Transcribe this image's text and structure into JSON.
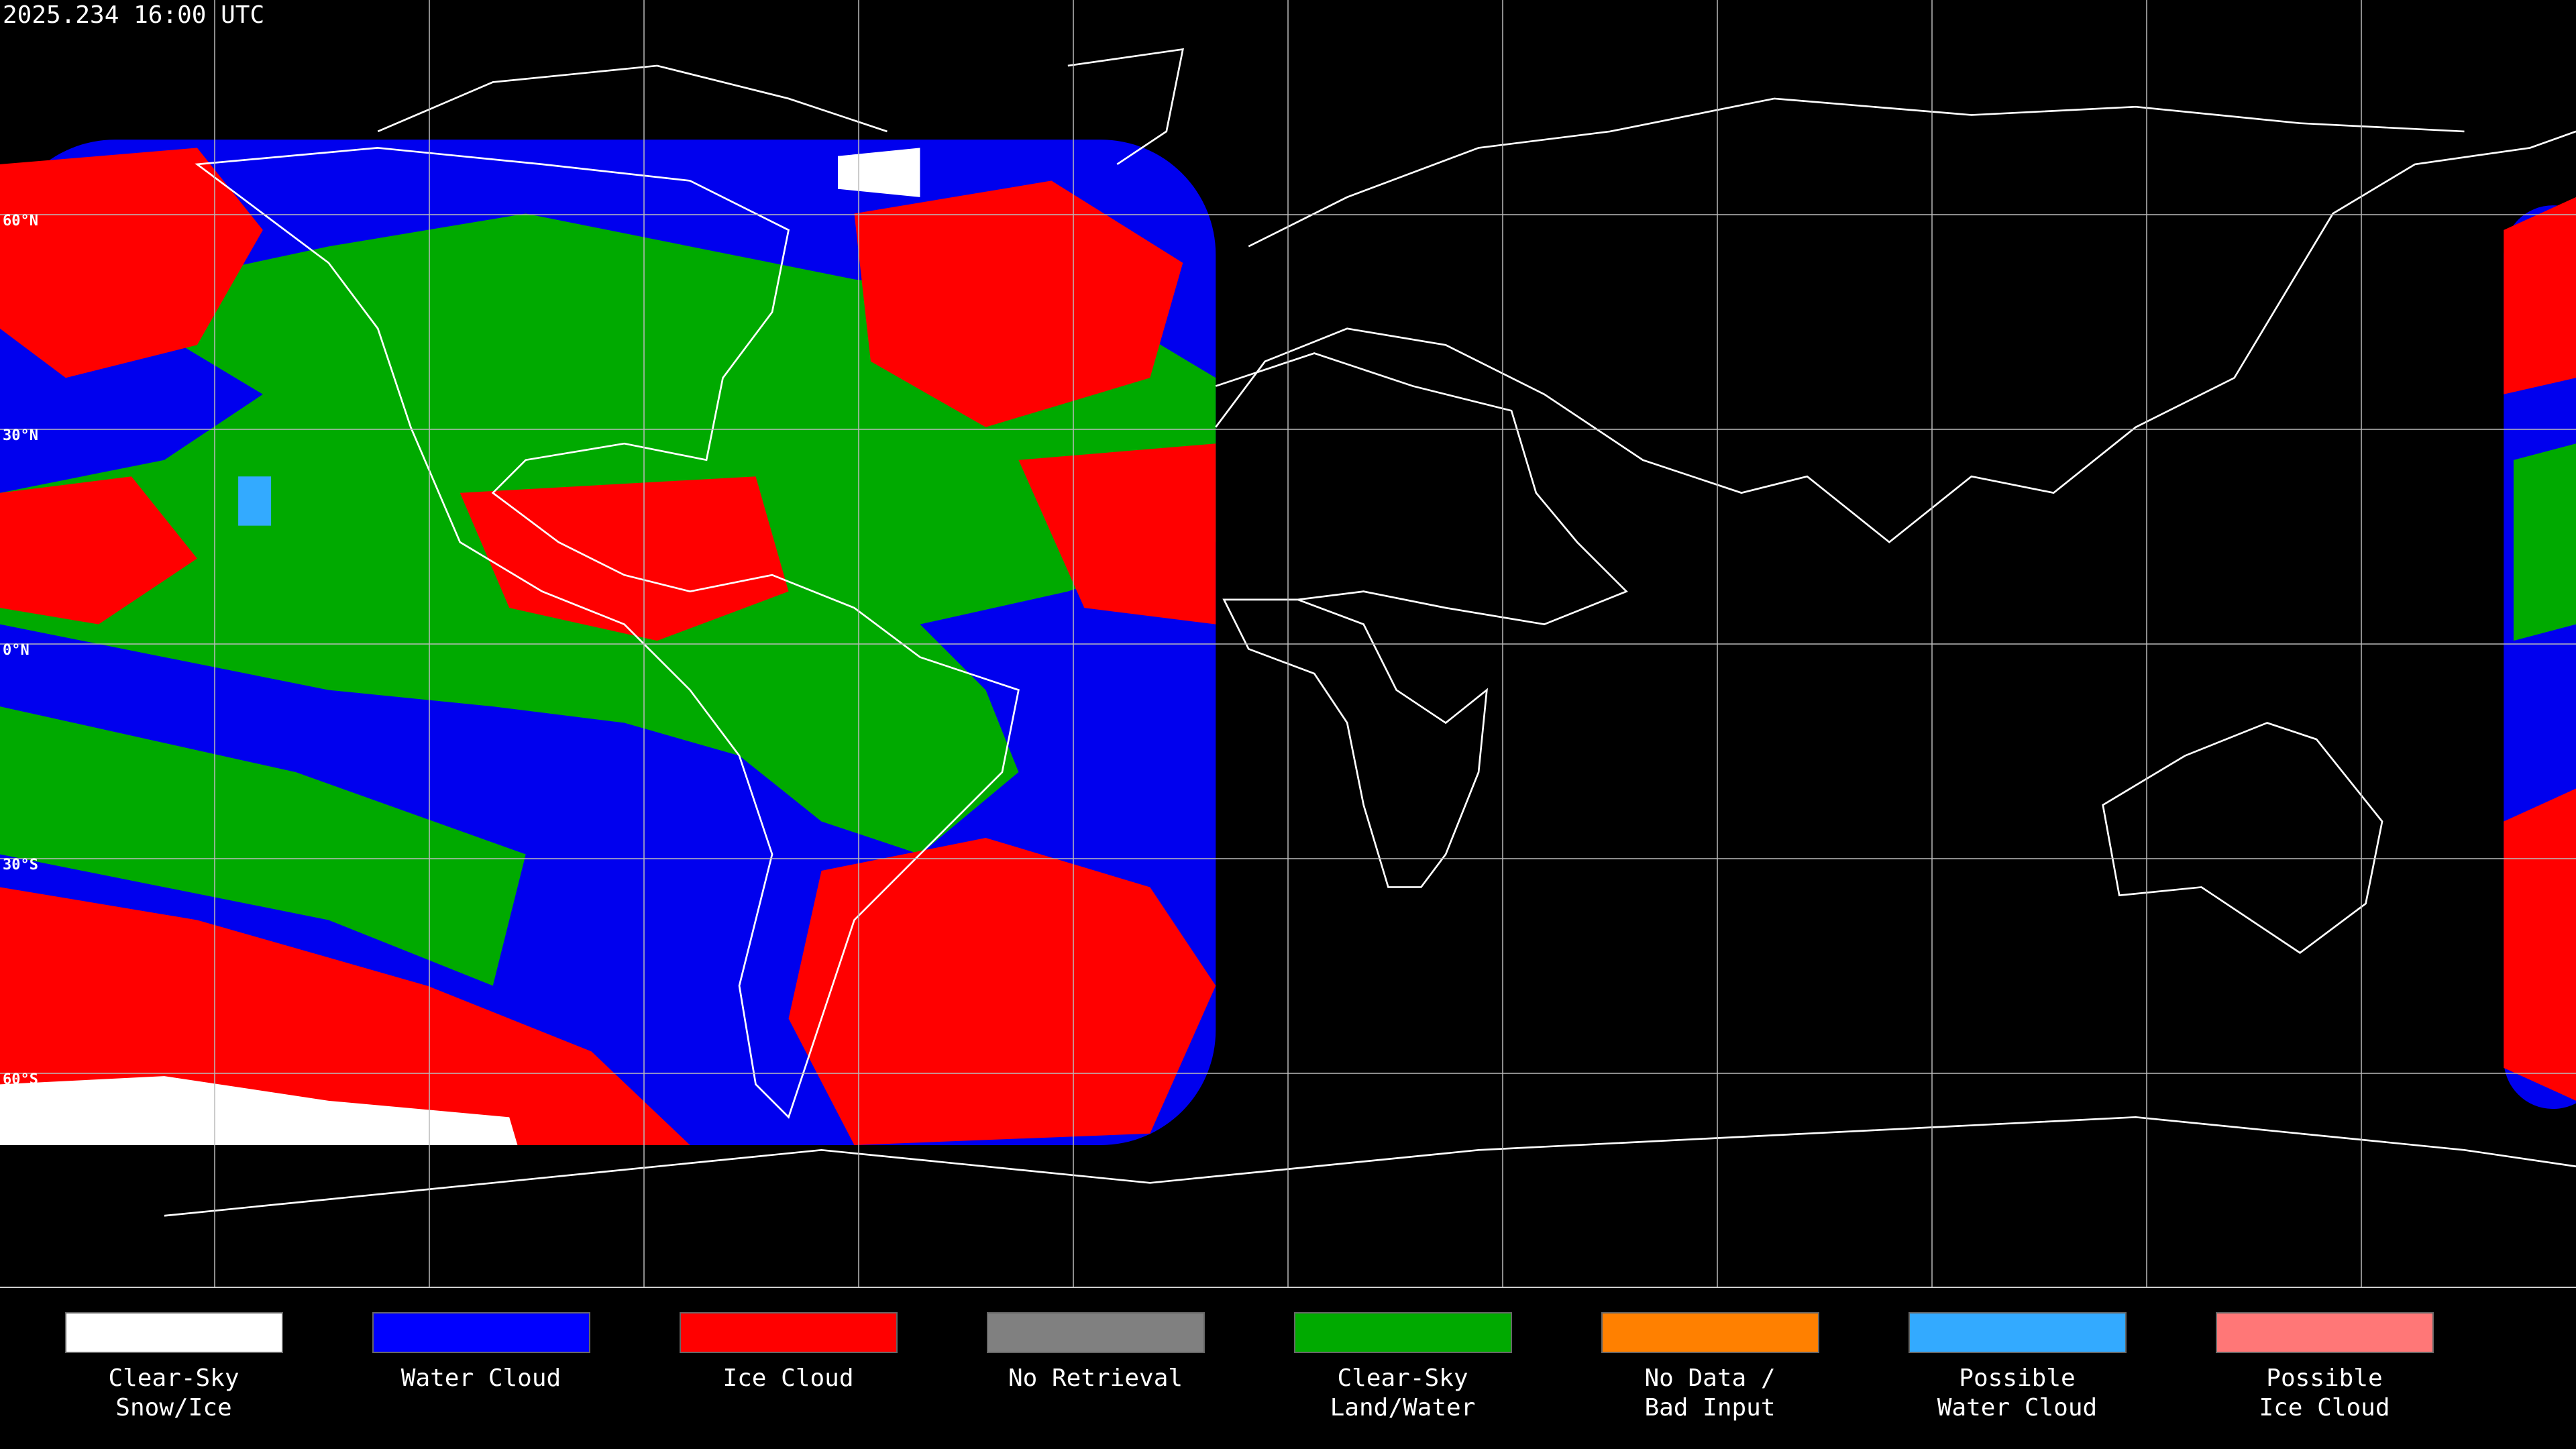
{
  "header": {
    "timestamp": "2025.234 16:00 UTC"
  },
  "map": {
    "latitude_labels": [
      "60°N",
      "30°N",
      "0°N",
      "30°S",
      "60°S"
    ]
  },
  "legend": {
    "items": [
      {
        "label": [
          "Clear-Sky",
          "Snow/Ice"
        ],
        "color": "#ffffff"
      },
      {
        "label": [
          "Water Cloud"
        ],
        "color": "#0000ff"
      },
      {
        "label": [
          "Ice Cloud"
        ],
        "color": "#ff0000"
      },
      {
        "label": [
          "No Retrieval"
        ],
        "color": "#808080"
      },
      {
        "label": [
          "Clear-Sky",
          "Land/Water"
        ],
        "color": "#00aa00"
      },
      {
        "label": [
          "No Data /",
          "Bad Input"
        ],
        "color": "#ff8000"
      },
      {
        "label": [
          "Possible",
          "Water Cloud"
        ],
        "color": "#33aaff"
      },
      {
        "label": [
          "Possible",
          "Ice Cloud"
        ],
        "color": "#ff7777"
      }
    ]
  }
}
